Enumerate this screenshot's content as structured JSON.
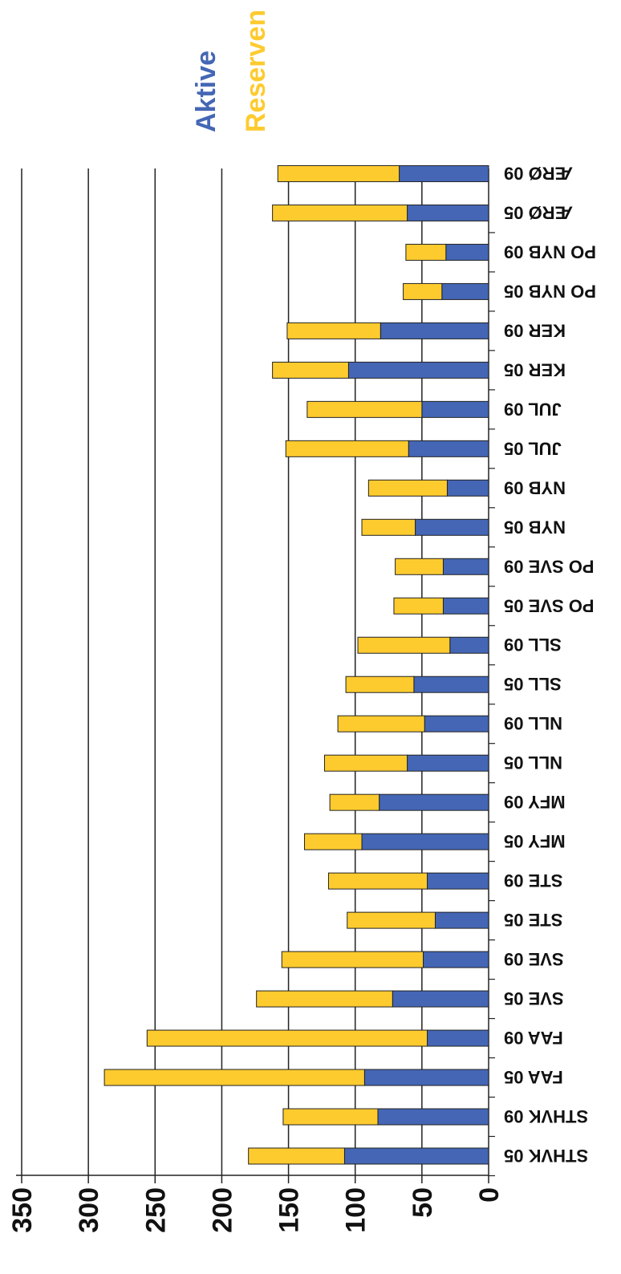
{
  "chart_data": {
    "type": "bar",
    "orientation": "horizontal-stacked",
    "categories": [
      "STHVK 05",
      "STHVK 09",
      "FAA 05",
      "FAA 09",
      "SVE 05",
      "SVE 09",
      "STE 05",
      "STE 09",
      "MFY 05",
      "MFY 09",
      "NLL 05",
      "NLL 09",
      "SLL 05",
      "SLL 09",
      "PO SVE 05",
      "PO SVE 09",
      "NYB 05",
      "NYB 09",
      "JUL 05",
      "JUL 09",
      "KER 05",
      "KER 09",
      "PO NYB 05",
      "PO NYB 09",
      "ÆRØ 05",
      "ÆRØ 09"
    ],
    "series": [
      {
        "name": "Aktive",
        "color": "#4466b5",
        "values": [
          108,
          83,
          93,
          46,
          72,
          49,
          40,
          46,
          95,
          82,
          61,
          48,
          56,
          29,
          34,
          34,
          55,
          31,
          60,
          50,
          105,
          81,
          35,
          32,
          61,
          67
        ]
      },
      {
        "name": "Reserven",
        "color": "#fecb2f",
        "values": [
          72,
          71,
          195,
          210,
          102,
          106,
          66,
          74,
          43,
          37,
          62,
          65,
          51,
          69,
          37,
          36,
          40,
          59,
          92,
          86,
          57,
          70,
          29,
          30,
          101,
          91
        ]
      }
    ],
    "ticks": [
      "0",
      "50",
      "100",
      "150",
      "200",
      "250",
      "300",
      "350"
    ],
    "xlim": [
      0,
      350
    ],
    "grid": true,
    "legend": "top",
    "rotated_180": true
  }
}
